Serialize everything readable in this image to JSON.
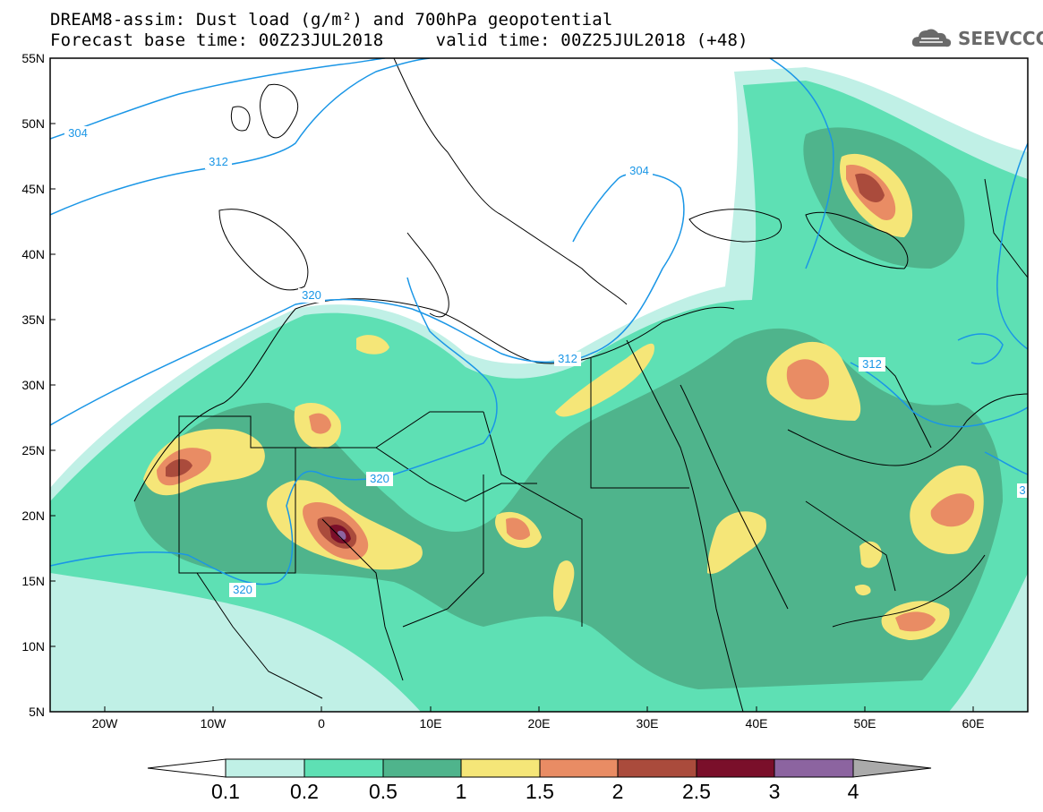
{
  "header": {
    "title": "DREAM8-assim: Dust load (g/m²) and 700hPa geopotential",
    "subtitle": "Forecast base time: 00Z23JUL2018     valid time: 00Z25JUL2018 (+48)",
    "logo_text": "SEEVCCC"
  },
  "axes": {
    "lat_labels": [
      "55N",
      "50N",
      "45N",
      "40N",
      "35N",
      "30N",
      "25N",
      "20N",
      "15N",
      "10N",
      "5N"
    ],
    "lon_labels": [
      "20W",
      "10W",
      "0",
      "10E",
      "20E",
      "30E",
      "40E",
      "50E",
      "60E"
    ]
  },
  "contour_labels": [
    "304",
    "312",
    "320",
    "312",
    "320",
    "320",
    "304",
    "312",
    "3"
  ],
  "colorbar": {
    "tick_labels": [
      "0.1",
      "0.2",
      "0.5",
      "1",
      "1.5",
      "2",
      "2.5",
      "3",
      "4"
    ],
    "colors": [
      "#c0f0e6",
      "#5ee0b4",
      "#4fb48c",
      "#f5e678",
      "#e98c64",
      "#aa4b3c",
      "#7a0f2a",
      "#8c64a0",
      "#aaaaaa"
    ],
    "low_end_color": "#ffffff"
  },
  "colors": {
    "contour_line": "#1a96e6",
    "coastline": "#000000"
  }
}
